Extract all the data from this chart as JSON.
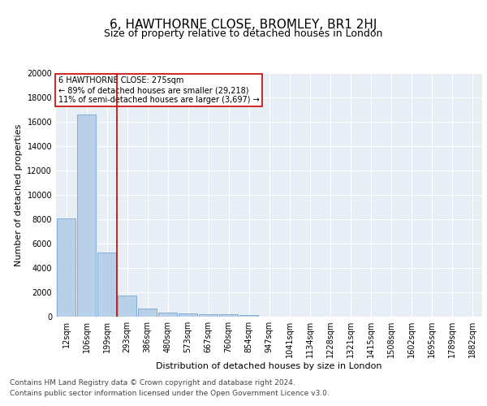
{
  "title": "6, HAWTHORNE CLOSE, BROMLEY, BR1 2HJ",
  "subtitle": "Size of property relative to detached houses in London",
  "xlabel": "Distribution of detached houses by size in London",
  "ylabel": "Number of detached properties",
  "categories": [
    "12sqm",
    "106sqm",
    "199sqm",
    "293sqm",
    "386sqm",
    "480sqm",
    "573sqm",
    "667sqm",
    "760sqm",
    "854sqm",
    "947sqm",
    "1041sqm",
    "1134sqm",
    "1228sqm",
    "1321sqm",
    "1415sqm",
    "1508sqm",
    "1602sqm",
    "1695sqm",
    "1789sqm",
    "1882sqm"
  ],
  "values": [
    8100,
    16600,
    5300,
    1750,
    700,
    350,
    280,
    220,
    180,
    130,
    0,
    0,
    0,
    0,
    0,
    0,
    0,
    0,
    0,
    0,
    0
  ],
  "bar_color": "#b8d0e8",
  "bar_edge_color": "#6699cc",
  "red_line_color": "#cc0000",
  "red_line_x": 2.5,
  "annotation_text": "6 HAWTHORNE CLOSE: 275sqm\n← 89% of detached houses are smaller (29,218)\n11% of semi-detached houses are larger (3,697) →",
  "annotation_box_color": "#ffffff",
  "annotation_box_edge": "#cc0000",
  "ylim": [
    0,
    20000
  ],
  "yticks": [
    0,
    2000,
    4000,
    6000,
    8000,
    10000,
    12000,
    14000,
    16000,
    18000,
    20000
  ],
  "bg_color": "#e8eef5",
  "footer_line1": "Contains HM Land Registry data © Crown copyright and database right 2024.",
  "footer_line2": "Contains public sector information licensed under the Open Government Licence v3.0.",
  "title_fontsize": 11,
  "subtitle_fontsize": 9,
  "axis_label_fontsize": 8,
  "tick_fontsize": 7,
  "annotation_fontsize": 7,
  "footer_fontsize": 6.5
}
